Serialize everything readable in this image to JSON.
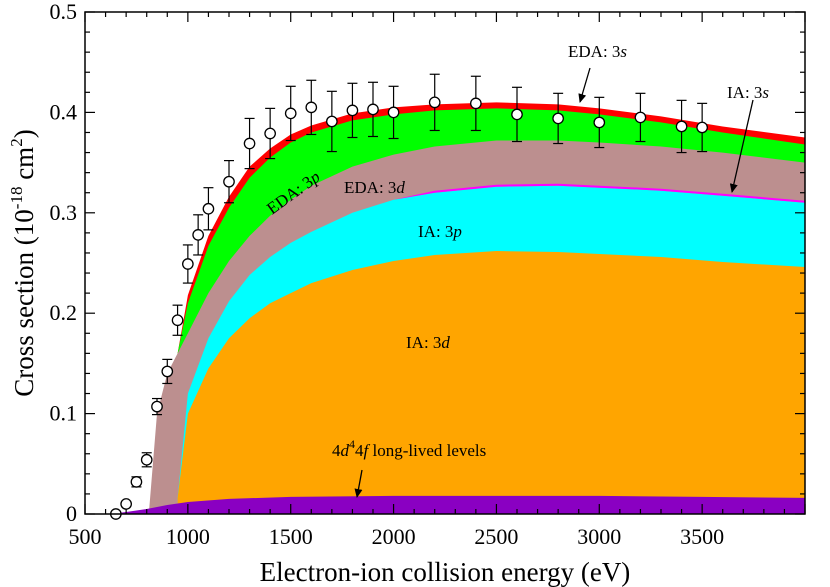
{
  "chart_data": {
    "type": "area",
    "xlabel": "Electron-ion collision energy (eV)",
    "ylabel": "Cross section (10^-18 cm^2)",
    "ylabel_parts": {
      "main": "Cross section (10",
      "exp1": "-18",
      "unit": " cm",
      "exp2": "2",
      "close": ")"
    },
    "xlim": [
      500,
      4000
    ],
    "ylim": [
      0,
      0.5
    ],
    "x_ticks": [
      500,
      1000,
      1500,
      2000,
      2500,
      3000,
      3500
    ],
    "y_ticks": [
      0,
      0.1,
      0.2,
      0.3,
      0.4,
      0.5
    ],
    "y_tick_labels": [
      "0",
      "0.1",
      "0.2",
      "0.3",
      "0.4",
      "0.5"
    ],
    "stacked_layers": [
      {
        "name": "4d^4 4f long-lived levels",
        "color": "#8a00c2",
        "x": [
          620,
          700,
          800,
          900,
          1000,
          1200,
          1500,
          2000,
          2500,
          3000,
          3500,
          4000
        ],
        "top": [
          0,
          0.002,
          0.005,
          0.009,
          0.012,
          0.015,
          0.017,
          0.018,
          0.018,
          0.018,
          0.017,
          0.016
        ]
      },
      {
        "name": "IA: 3d",
        "color": "#ffa500",
        "x": [
          950,
          1000,
          1100,
          1200,
          1300,
          1400,
          1500,
          1600,
          1800,
          2000,
          2200,
          2500,
          2800,
          3000,
          3300,
          3600,
          4000
        ],
        "top": [
          0.016,
          0.1,
          0.145,
          0.175,
          0.195,
          0.21,
          0.22,
          0.23,
          0.243,
          0.252,
          0.258,
          0.262,
          0.261,
          0.259,
          0.256,
          0.251,
          0.246
        ]
      },
      {
        "name": "IA: 3p",
        "color": "#00ffff",
        "x": [
          950,
          1000,
          1100,
          1200,
          1300,
          1400,
          1500,
          1600,
          1800,
          2000,
          2200,
          2500,
          2800,
          3000,
          3300,
          3600,
          4000
        ],
        "top": [
          0.016,
          0.12,
          0.175,
          0.212,
          0.238,
          0.256,
          0.27,
          0.281,
          0.3,
          0.313,
          0.32,
          0.326,
          0.327,
          0.325,
          0.322,
          0.317,
          0.31
        ]
      },
      {
        "name": "EDA: 3d",
        "color": "#bc8f8f",
        "x": [
          810,
          850,
          900,
          950,
          1000,
          1100,
          1200,
          1300,
          1400,
          1500,
          1600,
          1800,
          2000,
          2200,
          2500,
          2800,
          3000,
          3300,
          3600,
          4000
        ],
        "top": [
          0.0,
          0.1,
          0.14,
          0.16,
          0.18,
          0.22,
          0.252,
          0.277,
          0.297,
          0.313,
          0.327,
          0.346,
          0.358,
          0.366,
          0.372,
          0.372,
          0.37,
          0.366,
          0.36,
          0.35
        ]
      },
      {
        "name": "EDA: 3p",
        "color": "#00ff00",
        "x": [
          950,
          1000,
          1100,
          1200,
          1300,
          1400,
          1500,
          1600,
          1800,
          2000,
          2200,
          2500,
          2800,
          3000,
          3300,
          3600,
          4000
        ],
        "top": [
          0.16,
          0.21,
          0.267,
          0.305,
          0.335,
          0.355,
          0.37,
          0.38,
          0.392,
          0.398,
          0.402,
          0.404,
          0.402,
          0.398,
          0.39,
          0.38,
          0.368
        ]
      },
      {
        "name": "EDA: 3s",
        "color": "#ff0000",
        "x": [
          950,
          1000,
          1100,
          1200,
          1300,
          1400,
          1500,
          1600,
          1800,
          2000,
          2200,
          2500,
          2800,
          3000,
          3300,
          3600,
          4000
        ],
        "top": [
          0.16,
          0.218,
          0.277,
          0.316,
          0.346,
          0.364,
          0.378,
          0.387,
          0.399,
          0.405,
          0.408,
          0.41,
          0.408,
          0.404,
          0.396,
          0.386,
          0.375
        ]
      }
    ],
    "magenta_line": {
      "name": "IA: 3s",
      "color": "#ff00ff",
      "x": [
        950,
        1000,
        1100,
        1200,
        1300,
        1400,
        1500,
        1600,
        1800,
        2000,
        2200,
        2500,
        2800,
        3000,
        3300,
        3600,
        4000
      ],
      "y": [
        0.016,
        0.12,
        0.175,
        0.212,
        0.238,
        0.256,
        0.27,
        0.281,
        0.3,
        0.313,
        0.32,
        0.326,
        0.327,
        0.325,
        0.322,
        0.317,
        0.31
      ],
      "y_top": [
        0.016,
        0.12,
        0.175,
        0.212,
        0.238,
        0.256,
        0.27,
        0.281,
        0.3,
        0.313,
        0.322,
        0.328,
        0.329,
        0.327,
        0.324,
        0.319,
        0.312
      ]
    },
    "experiment": {
      "name": "experiment",
      "x": [
        650,
        700,
        750,
        800,
        850,
        900,
        950,
        1000,
        1050,
        1100,
        1200,
        1300,
        1400,
        1500,
        1600,
        1700,
        1800,
        1900,
        2000,
        2200,
        2400,
        2600,
        2800,
        3000,
        3200,
        3400,
        3500
      ],
      "y": [
        0.0,
        0.01,
        0.032,
        0.054,
        0.107,
        0.142,
        0.193,
        0.249,
        0.278,
        0.304,
        0.331,
        0.369,
        0.379,
        0.399,
        0.405,
        0.391,
        0.402,
        0.403,
        0.4,
        0.41,
        0.409,
        0.398,
        0.394,
        0.39,
        0.395,
        0.386,
        0.385
      ],
      "err": [
        0.0,
        0.002,
        0.005,
        0.007,
        0.008,
        0.012,
        0.015,
        0.019,
        0.02,
        0.021,
        0.021,
        0.025,
        0.025,
        0.027,
        0.027,
        0.03,
        0.027,
        0.027,
        0.026,
        0.028,
        0.027,
        0.027,
        0.025,
        0.025,
        0.024,
        0.026,
        0.024
      ]
    },
    "annotations": [
      {
        "id": "eda3s",
        "parts": [
          {
            "t": "EDA: 3"
          },
          {
            "t": "s",
            "italic": true
          }
        ]
      },
      {
        "id": "ia3s",
        "parts": [
          {
            "t": "IA: 3"
          },
          {
            "t": "s",
            "italic": true
          }
        ]
      },
      {
        "id": "eda3p",
        "parts": [
          {
            "t": "EDA: 3"
          },
          {
            "t": "p",
            "italic": true
          }
        ]
      },
      {
        "id": "eda3d",
        "parts": [
          {
            "t": "EDA: 3"
          },
          {
            "t": "d",
            "italic": true
          }
        ]
      },
      {
        "id": "ia3p",
        "parts": [
          {
            "t": "IA: 3"
          },
          {
            "t": "p",
            "italic": true
          }
        ]
      },
      {
        "id": "ia3d",
        "parts": [
          {
            "t": "IA: 3"
          },
          {
            "t": "d",
            "italic": true
          }
        ]
      },
      {
        "id": "longlived",
        "parts": [
          {
            "t": "4"
          },
          {
            "t": "d",
            "italic": true
          },
          {
            "t": "4",
            "sup": true
          },
          {
            "t": "4"
          },
          {
            "t": "f",
            "italic": true
          },
          {
            "t": " long-lived levels"
          }
        ]
      }
    ]
  }
}
